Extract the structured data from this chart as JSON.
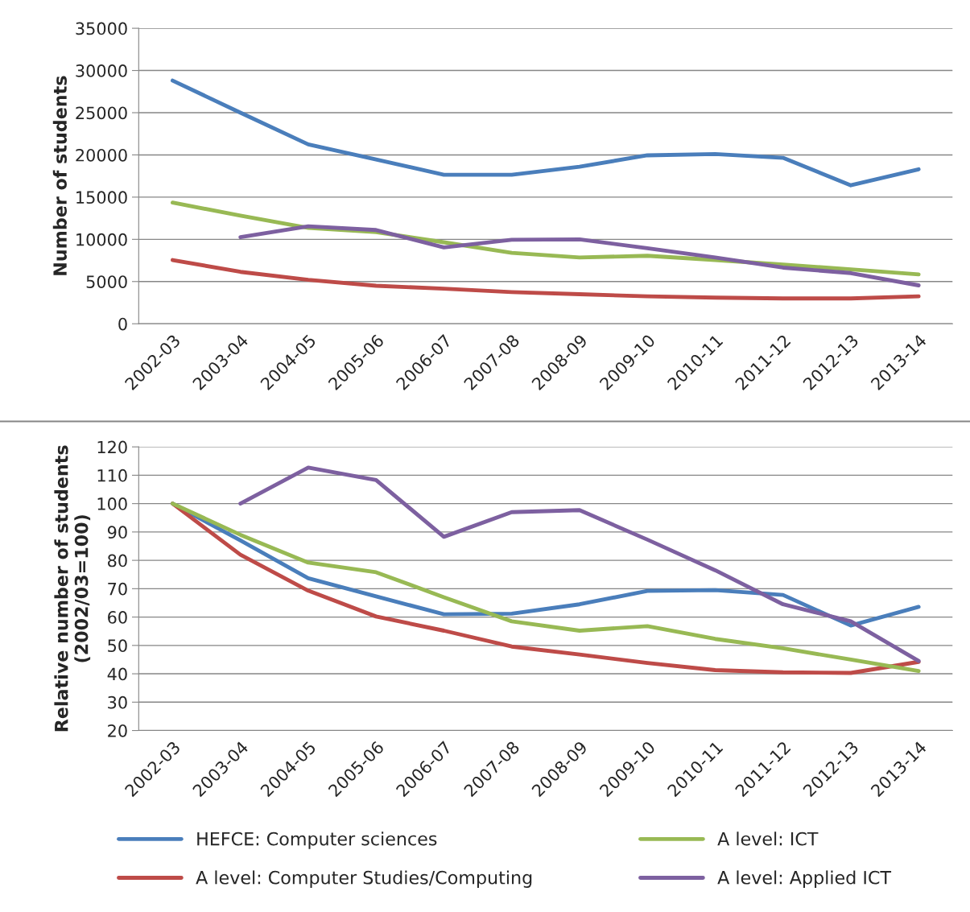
{
  "chart_data": [
    {
      "type": "line",
      "ylabel": "Number of students",
      "categories": [
        "2002-03",
        "2003-04",
        "2004-05",
        "2005-06",
        "2006-07",
        "2007-08",
        "2008-09",
        "2009-10",
        "2010-11",
        "2011-12",
        "2012-13",
        "2013-14"
      ],
      "ylim": [
        0,
        35000
      ],
      "yticks": [
        0,
        5000,
        10000,
        15000,
        20000,
        25000,
        30000,
        35000
      ],
      "grid": "y",
      "legend": false,
      "series": [
        {
          "color": "#4a7ebb",
          "values": [
            28800,
            25000,
            21250,
            19450,
            17650,
            17650,
            18600,
            19950,
            20100,
            19650,
            16400,
            18300
          ]
        },
        {
          "color": "#be4b48",
          "values": [
            7550,
            6150,
            5200,
            4500,
            4150,
            3750,
            3500,
            3250,
            3100,
            3000,
            3000,
            3250
          ]
        },
        {
          "color": "#98b954",
          "values": [
            14350,
            12800,
            11350,
            10850,
            9650,
            8400,
            7850,
            8050,
            7550,
            7000,
            6450,
            5850
          ]
        },
        {
          "color": "#7d60a0",
          "values": [
            null,
            10250,
            11550,
            11100,
            9050,
            9950,
            10000,
            8950,
            7850,
            6650,
            6000,
            4550
          ]
        }
      ]
    },
    {
      "type": "line",
      "ylabel": "Relative number of students\n(2002/03=100)",
      "categories": [
        "2002-03",
        "2003-04",
        "2004-05",
        "2005-06",
        "2006-07",
        "2007-08",
        "2008-09",
        "2009-10",
        "2010-11",
        "2011-12",
        "2012-13",
        "2013-14"
      ],
      "ylim": [
        20,
        120
      ],
      "yticks": [
        20,
        30,
        40,
        50,
        60,
        70,
        80,
        90,
        100,
        110,
        120
      ],
      "grid": "y",
      "legend": "bottom",
      "series": [
        {
          "name": "HEFCE: Computer sciences",
          "color": "#4a7ebb",
          "values": [
            100,
            87,
            73.7,
            67.3,
            61,
            61.2,
            64.5,
            69.2,
            69.5,
            67.8,
            57,
            63.6
          ]
        },
        {
          "name": "A level: Computer Studies/Computing",
          "color": "#be4b48",
          "values": [
            100,
            82,
            69.3,
            60.2,
            55.2,
            49.6,
            46.8,
            43.8,
            41.3,
            40.5,
            40.3,
            44.2
          ]
        },
        {
          "name": "A level: ICT",
          "color": "#98b954",
          "values": [
            100,
            89,
            79.2,
            75.8,
            67,
            58.5,
            55.2,
            56.8,
            52.3,
            49,
            45,
            41
          ]
        },
        {
          "name": "A level: Applied ICT",
          "color": "#7d60a0",
          "values": [
            null,
            100,
            112.7,
            108.3,
            88.3,
            97,
            97.7,
            87.3,
            76.5,
            64.5,
            58.5,
            44.5
          ]
        }
      ]
    }
  ]
}
